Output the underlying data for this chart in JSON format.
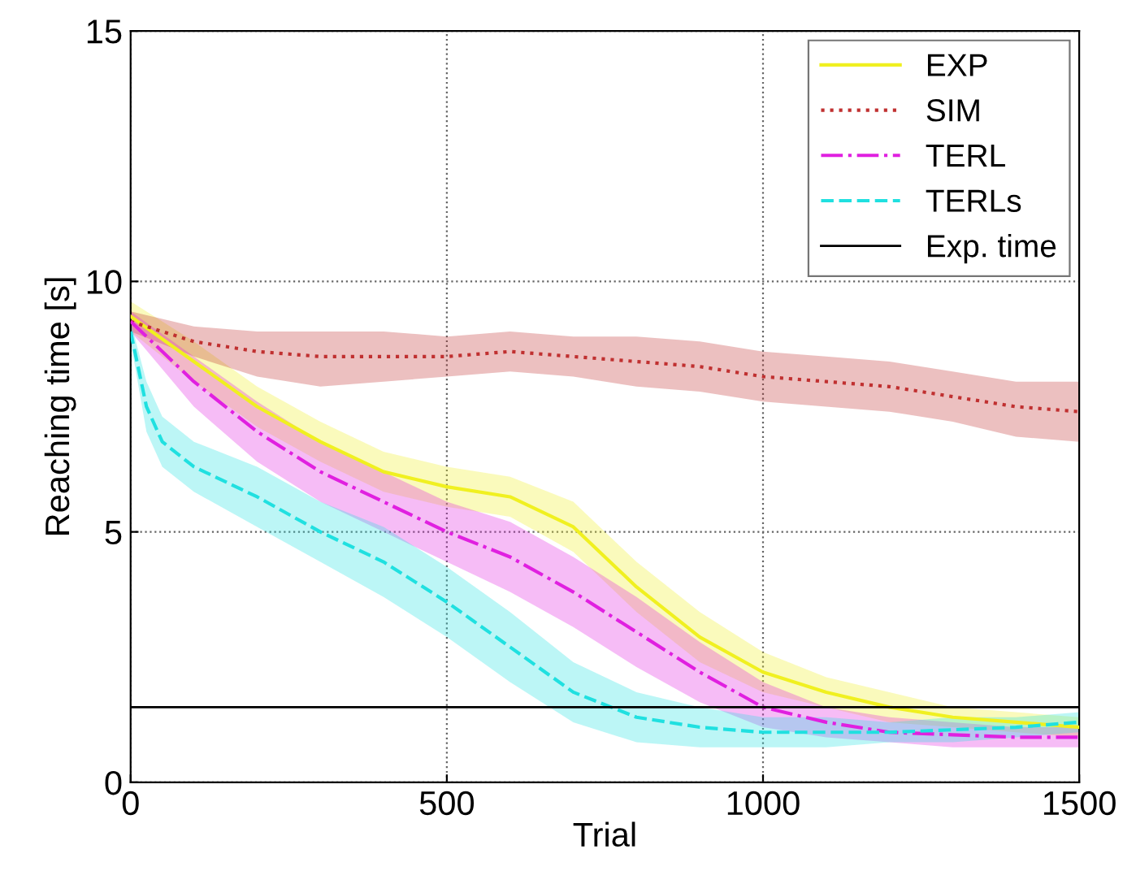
{
  "chart_data": {
    "type": "line",
    "xlabel": "Trial",
    "ylabel": "Reaching time [s]",
    "xlim": [
      0,
      1500
    ],
    "ylim": [
      0,
      15
    ],
    "xticks": [
      0,
      500,
      1000,
      1500
    ],
    "yticks": [
      0,
      5,
      10,
      15
    ],
    "grid": true,
    "legend": "top right",
    "marker": "none",
    "series": [
      {
        "name": "EXP",
        "color": "#f0f020",
        "line_style": "solid",
        "x": [
          0,
          100,
          200,
          300,
          400,
          500,
          600,
          700,
          800,
          900,
          1000,
          1100,
          1200,
          1300,
          1400,
          1500
        ],
        "values": [
          9.3,
          8.4,
          7.5,
          6.8,
          6.2,
          5.9,
          5.7,
          5.1,
          3.9,
          2.9,
          2.2,
          1.8,
          1.5,
          1.3,
          1.2,
          1.1
        ],
        "lower": [
          9.0,
          8.0,
          7.1,
          6.4,
          5.8,
          5.5,
          5.3,
          4.6,
          3.4,
          2.4,
          1.8,
          1.5,
          1.2,
          1.1,
          1.0,
          0.9
        ],
        "upper": [
          9.6,
          8.8,
          7.9,
          7.2,
          6.6,
          6.3,
          6.1,
          5.6,
          4.4,
          3.4,
          2.6,
          2.1,
          1.8,
          1.5,
          1.4,
          1.3
        ]
      },
      {
        "name": "SIM",
        "color": "#c03030",
        "line_style": "dotted",
        "x": [
          0,
          100,
          200,
          300,
          400,
          500,
          600,
          700,
          800,
          900,
          1000,
          1100,
          1200,
          1300,
          1400,
          1500
        ],
        "values": [
          9.2,
          8.8,
          8.6,
          8.5,
          8.5,
          8.5,
          8.6,
          8.5,
          8.4,
          8.3,
          8.1,
          8.0,
          7.9,
          7.7,
          7.5,
          7.4
        ],
        "lower": [
          9.0,
          8.5,
          8.1,
          7.9,
          8.0,
          8.1,
          8.2,
          8.1,
          7.9,
          7.8,
          7.6,
          7.5,
          7.4,
          7.2,
          6.9,
          6.8
        ],
        "upper": [
          9.4,
          9.1,
          9.0,
          9.0,
          9.0,
          8.9,
          9.0,
          8.9,
          8.9,
          8.8,
          8.6,
          8.5,
          8.4,
          8.2,
          8.0,
          8.0
        ]
      },
      {
        "name": "TERL",
        "color": "#e020e0",
        "line_style": "dashdot",
        "x": [
          0,
          100,
          200,
          300,
          400,
          500,
          600,
          700,
          800,
          900,
          1000,
          1100,
          1200,
          1300,
          1400,
          1500
        ],
        "values": [
          9.2,
          8.0,
          7.0,
          6.2,
          5.6,
          5.0,
          4.5,
          3.8,
          3.0,
          2.2,
          1.5,
          1.2,
          1.0,
          0.95,
          0.9,
          0.9
        ],
        "lower": [
          9.0,
          7.5,
          6.4,
          5.6,
          5.0,
          4.4,
          3.8,
          3.1,
          2.3,
          1.6,
          1.1,
          0.9,
          0.8,
          0.7,
          0.7,
          0.7
        ],
        "upper": [
          9.4,
          8.5,
          7.6,
          6.8,
          6.2,
          5.6,
          5.2,
          4.5,
          3.7,
          2.8,
          2.0,
          1.5,
          1.3,
          1.2,
          1.1,
          1.1
        ]
      },
      {
        "name": "TERLs",
        "color": "#20e0e0",
        "line_style": "dashed",
        "x": [
          0,
          25,
          50,
          100,
          200,
          300,
          400,
          500,
          600,
          700,
          800,
          900,
          1000,
          1100,
          1200,
          1300,
          1400,
          1500
        ],
        "values": [
          9.0,
          7.5,
          6.8,
          6.3,
          5.7,
          5.0,
          4.4,
          3.6,
          2.7,
          1.8,
          1.3,
          1.1,
          1.0,
          1.0,
          1.0,
          1.05,
          1.1,
          1.2
        ],
        "lower": [
          8.8,
          7.0,
          6.3,
          5.8,
          5.1,
          4.4,
          3.7,
          2.9,
          2.0,
          1.2,
          0.8,
          0.7,
          0.7,
          0.7,
          0.8,
          0.8,
          0.9,
          1.0
        ],
        "upper": [
          9.2,
          8.0,
          7.3,
          6.8,
          6.3,
          5.6,
          5.1,
          4.3,
          3.4,
          2.4,
          1.8,
          1.5,
          1.3,
          1.3,
          1.2,
          1.3,
          1.3,
          1.4
        ]
      }
    ],
    "ref_lines": [
      {
        "axis": "y",
        "value": 1.5,
        "label": "Exp. time",
        "color": "#000000",
        "line_style": "solid"
      }
    ]
  }
}
